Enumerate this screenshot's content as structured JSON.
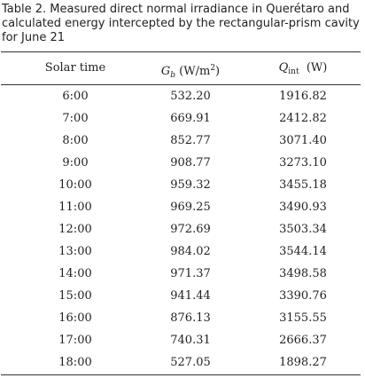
{
  "caption": "Table 2. Measured direct normal irradiance in Querétaro and calculated energy intercepted by the rectangular-prism cavity for June 21",
  "headers": {
    "time": "Solar time",
    "gb_symbol": "G",
    "gb_sub": "b",
    "gb_unit_pre": " (W/m",
    "gb_unit_sup": "2",
    "gb_unit_post": ")",
    "qint_symbol": "Q",
    "qint_sub": "int",
    "qint_unit": "  (W)"
  },
  "rows": [
    {
      "time": "6:00",
      "gb": "532.20",
      "qint": "1916.82"
    },
    {
      "time": "7:00",
      "gb": "669.91",
      "qint": "2412.82"
    },
    {
      "time": "8:00",
      "gb": "852.77",
      "qint": "3071.40"
    },
    {
      "time": "9:00",
      "gb": "908.77",
      "qint": "3273.10"
    },
    {
      "time": "10:00",
      "gb": "959.32",
      "qint": "3455.18"
    },
    {
      "time": "11:00",
      "gb": "969.25",
      "qint": "3490.93"
    },
    {
      "time": "12:00",
      "gb": "972.69",
      "qint": "3503.34"
    },
    {
      "time": "13:00",
      "gb": "984.02",
      "qint": "3544.14"
    },
    {
      "time": "14:00",
      "gb": "971.37",
      "qint": "3498.58"
    },
    {
      "time": "15:00",
      "gb": "941.44",
      "qint": "3390.76"
    },
    {
      "time": "16:00",
      "gb": "876.13",
      "qint": "3155.55"
    },
    {
      "time": "17:00",
      "gb": "740.31",
      "qint": "2666.37"
    },
    {
      "time": "18:00",
      "gb": "527.05",
      "qint": "1898.27"
    }
  ]
}
